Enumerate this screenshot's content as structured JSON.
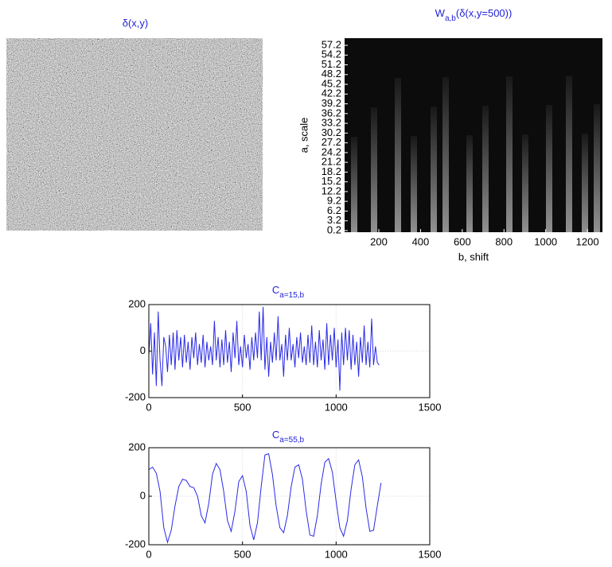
{
  "chart_data": [
    {
      "type": "image",
      "title": "δ(x,y)"
    },
    {
      "type": "heatmap",
      "title": {
        "main": "W",
        "sub": "a,b",
        "rest": "(δ(x,y=500))"
      },
      "xlabel": "b, shift",
      "ylabel": "a, scale",
      "xlim": [
        36,
        1272
      ],
      "xticks": [
        200,
        400,
        600,
        800,
        1000,
        1200
      ],
      "ylim": [
        -0.3,
        59.4
      ],
      "yticks": [
        0.2,
        3.2,
        6.2,
        9.2,
        12.2,
        15.2,
        18.2,
        21.2,
        24.2,
        27.2,
        30.2,
        33.2,
        36.2,
        39.2,
        42.2,
        45.2,
        48.2,
        51.2,
        54.2,
        57.2
      ]
    },
    {
      "type": "line",
      "title": {
        "main": "C",
        "sub": "a=15,b"
      },
      "x": [
        0,
        10,
        20,
        30,
        40,
        50,
        60,
        70,
        80,
        90,
        100,
        110,
        120,
        130,
        140,
        150,
        160,
        170,
        180,
        190,
        200,
        210,
        220,
        230,
        240,
        250,
        260,
        270,
        280,
        290,
        300,
        310,
        320,
        330,
        340,
        350,
        360,
        370,
        380,
        390,
        400,
        410,
        420,
        430,
        440,
        450,
        460,
        470,
        480,
        490,
        500,
        510,
        520,
        530,
        540,
        550,
        560,
        570,
        580,
        590,
        600,
        610,
        620,
        630,
        640,
        650,
        660,
        670,
        680,
        690,
        700,
        710,
        720,
        730,
        740,
        750,
        760,
        770,
        780,
        790,
        800,
        810,
        820,
        830,
        840,
        850,
        860,
        870,
        880,
        890,
        900,
        910,
        920,
        930,
        940,
        950,
        960,
        970,
        980,
        990,
        1000,
        1010,
        1020,
        1030,
        1040,
        1050,
        1060,
        1070,
        1080,
        1090,
        1100,
        1110,
        1120,
        1130,
        1140,
        1150,
        1160,
        1170,
        1180,
        1190,
        1200,
        1210,
        1220,
        1230
      ],
      "series": [
        {
          "color": "#2a2ae6",
          "values": [
            -20,
            120,
            -100,
            80,
            -150,
            170,
            -40,
            -150,
            60,
            20,
            -90,
            70,
            -60,
            80,
            -80,
            90,
            -40,
            60,
            -70,
            70,
            -50,
            40,
            -80,
            60,
            -30,
            80,
            -60,
            30,
            -50,
            70,
            -70,
            40,
            -40,
            20,
            -60,
            130,
            -40,
            60,
            -70,
            50,
            -60,
            90,
            -50,
            40,
            -90,
            80,
            -30,
            130,
            -60,
            20,
            -70,
            70,
            -30,
            30,
            -80,
            60,
            -40,
            80,
            -30,
            170,
            -40,
            190,
            -80,
            60,
            -110,
            40,
            -50,
            80,
            -40,
            150,
            -40,
            30,
            -110,
            70,
            -40,
            100,
            -40,
            30,
            -70,
            60,
            -30,
            80,
            -50,
            20,
            -60,
            70,
            -50,
            110,
            -60,
            40,
            -70,
            90,
            -40,
            50,
            -80,
            120,
            -60,
            70,
            -40,
            100,
            -70,
            50,
            -170,
            80,
            -60,
            100,
            -40,
            90,
            -80,
            70,
            -60,
            40,
            -110,
            60,
            -50,
            110,
            -60,
            40,
            -70,
            140,
            -60,
            20,
            -50,
            -60
          ]
        }
      ],
      "xlim": [
        0,
        1500
      ],
      "xticks": [
        0,
        500,
        1000,
        1500
      ],
      "ylim": [
        -200,
        200
      ],
      "yticks": [
        -200,
        0,
        200
      ],
      "grid": true
    },
    {
      "type": "line",
      "title": {
        "main": "C",
        "sub": "a=55,b"
      },
      "x": [
        0,
        20,
        40,
        60,
        80,
        100,
        120,
        140,
        160,
        180,
        200,
        220,
        240,
        260,
        280,
        300,
        320,
        340,
        360,
        380,
        400,
        420,
        440,
        460,
        480,
        500,
        520,
        540,
        560,
        580,
        600,
        620,
        640,
        660,
        680,
        700,
        720,
        740,
        760,
        780,
        800,
        820,
        840,
        860,
        880,
        900,
        920,
        940,
        960,
        980,
        1000,
        1020,
        1040,
        1060,
        1080,
        1100,
        1120,
        1140,
        1160,
        1180,
        1200,
        1220,
        1240
      ],
      "series": [
        {
          "color": "#2a2ae6",
          "values": [
            110,
            120,
            95,
            20,
            -130,
            -190,
            -140,
            -40,
            40,
            70,
            65,
            40,
            35,
            0,
            -80,
            -110,
            -30,
            90,
            135,
            110,
            20,
            -100,
            -145,
            -60,
            60,
            85,
            20,
            -120,
            -180,
            -110,
            40,
            170,
            175,
            90,
            -40,
            -130,
            -150,
            -80,
            40,
            120,
            130,
            70,
            -60,
            -160,
            -165,
            -80,
            50,
            140,
            155,
            100,
            -20,
            -130,
            -165,
            -100,
            30,
            130,
            150,
            80,
            -50,
            -145,
            -140,
            -40,
            55
          ]
        }
      ],
      "xlim": [
        0,
        1500
      ],
      "xticks": [
        0,
        500,
        1000,
        1500
      ],
      "ylim": [
        -200,
        200
      ],
      "yticks": [
        -200,
        0,
        200
      ],
      "grid": true
    }
  ]
}
